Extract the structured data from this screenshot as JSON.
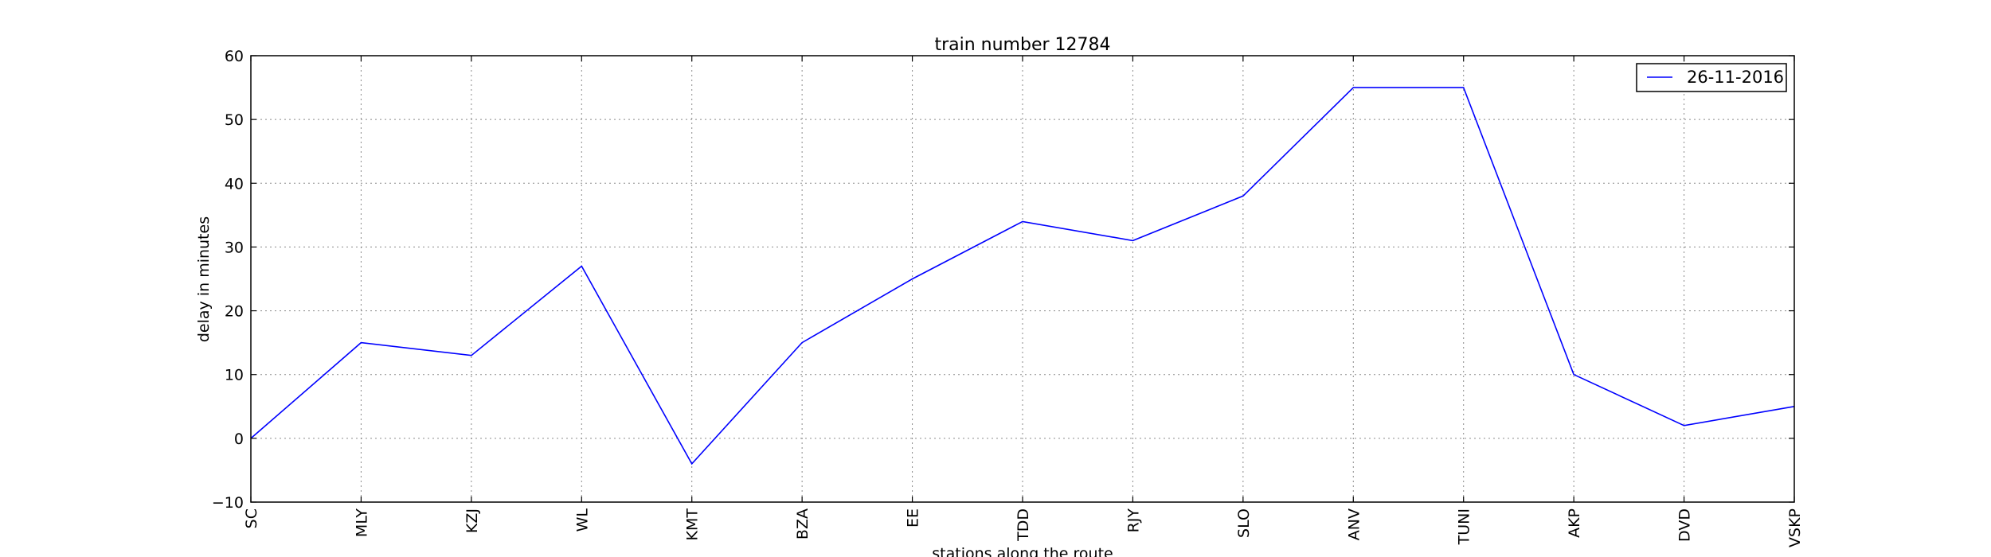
{
  "chart_data": {
    "type": "line",
    "title": "train number 12784",
    "xlabel": "stations along the route",
    "ylabel": "delay in minutes",
    "categories": [
      "SC",
      "MLY",
      "KZJ",
      "WL",
      "KMT",
      "BZA",
      "EE",
      "TDD",
      "RJY",
      "SLO",
      "ANV",
      "TUNI",
      "AKP",
      "DVD",
      "VSKP"
    ],
    "series": [
      {
        "name": "26-11-2016",
        "color": "#0000ff",
        "values": [
          0,
          15,
          13,
          27,
          -4,
          15,
          25,
          34,
          31,
          38,
          55,
          55,
          10,
          2,
          5
        ]
      }
    ],
    "ylim": [
      -10,
      60
    ],
    "yticks": [
      -10,
      0,
      10,
      20,
      30,
      40,
      50,
      60
    ],
    "grid": true,
    "legend_position": "top-right"
  }
}
